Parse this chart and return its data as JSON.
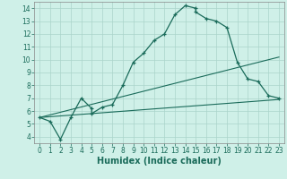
{
  "xlabel": "Humidex (Indice chaleur)",
  "bg_color": "#cff0e8",
  "grid_color": "#aad4ca",
  "line_color": "#1a6b5a",
  "xlim": [
    -0.5,
    23.5
  ],
  "ylim": [
    3.5,
    14.5
  ],
  "xticks": [
    0,
    1,
    2,
    3,
    4,
    5,
    6,
    7,
    8,
    9,
    10,
    11,
    12,
    13,
    14,
    15,
    16,
    17,
    18,
    19,
    20,
    21,
    22,
    23
  ],
  "yticks": [
    4,
    5,
    6,
    7,
    8,
    9,
    10,
    11,
    12,
    13,
    14
  ],
  "main_x": [
    0,
    1,
    2,
    3,
    4,
    5,
    5,
    6,
    7,
    8,
    9,
    10,
    11,
    12,
    13,
    14,
    15,
    15,
    16,
    17,
    18,
    19,
    20,
    21,
    22,
    23
  ],
  "main_y": [
    5.5,
    5.2,
    3.8,
    5.5,
    7.0,
    6.2,
    5.8,
    6.3,
    6.5,
    8.0,
    9.8,
    10.5,
    11.5,
    12.0,
    13.5,
    14.2,
    14.0,
    13.7,
    13.2,
    13.0,
    12.5,
    9.8,
    8.5,
    8.3,
    7.2,
    7.0
  ],
  "line1_x": [
    0,
    23
  ],
  "line1_y": [
    5.5,
    6.9
  ],
  "line2_x": [
    0,
    23
  ],
  "line2_y": [
    5.5,
    10.2
  ],
  "xlabel_fontsize": 7,
  "tick_fontsize": 5.5
}
